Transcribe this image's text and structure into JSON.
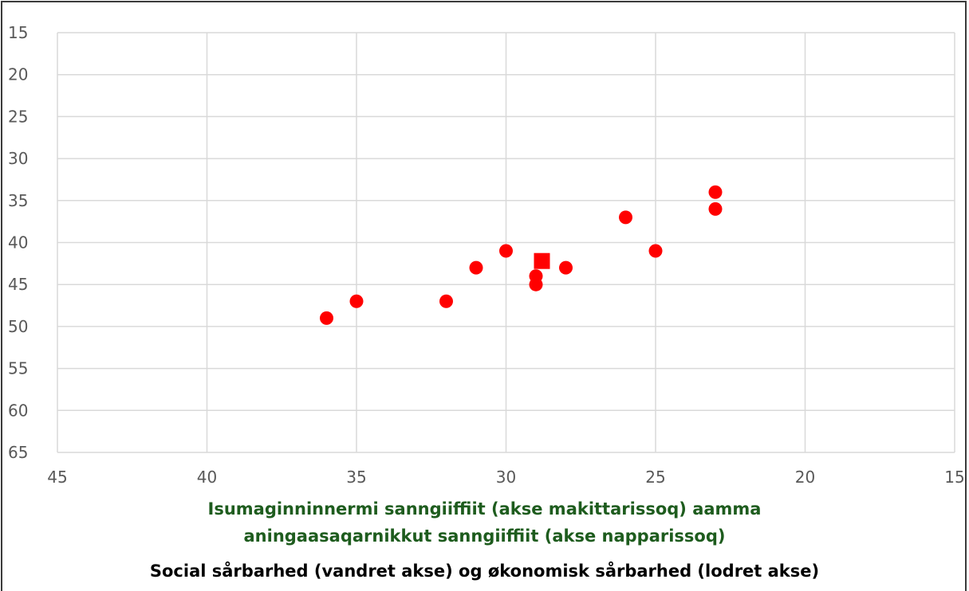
{
  "chart_data": {
    "type": "scatter",
    "x_axis": {
      "min": 15,
      "max": 45,
      "reversed": true,
      "step": 5,
      "ticks": [
        45,
        40,
        35,
        30,
        25,
        20,
        15
      ]
    },
    "y_axis": {
      "min": 15,
      "max": 65,
      "reversed": true,
      "step": 5,
      "ticks": [
        15,
        20,
        25,
        30,
        35,
        40,
        45,
        50,
        55,
        60,
        65
      ]
    },
    "grid": true,
    "marker_color": "#ff0000",
    "grid_color": "#d9d9d9",
    "series": [
      {
        "marker": "circle",
        "points": [
          {
            "x": 36,
            "y": 49
          },
          {
            "x": 35,
            "y": 47
          },
          {
            "x": 32,
            "y": 47
          },
          {
            "x": 31,
            "y": 43
          },
          {
            "x": 30,
            "y": 41
          },
          {
            "x": 29,
            "y": 44
          },
          {
            "x": 29,
            "y": 45
          },
          {
            "x": 28,
            "y": 43
          },
          {
            "x": 26,
            "y": 37
          },
          {
            "x": 25,
            "y": 41
          },
          {
            "x": 23,
            "y": 34
          },
          {
            "x": 23,
            "y": 36
          }
        ]
      },
      {
        "marker": "square",
        "points": [
          {
            "x": 28.8,
            "y": 42.2
          }
        ]
      }
    ],
    "xlabel_line1": "Isumaginninnermi sanngiiffiit (akse makittarissoq) aamma",
    "xlabel_line2": "aningaasaqarnikkut sanngiiffiit (akse napparissoq)",
    "xlabel_danish": "Social sårbarhed (vandret akse) og økonomisk sårbarhed (lodret akse)"
  }
}
